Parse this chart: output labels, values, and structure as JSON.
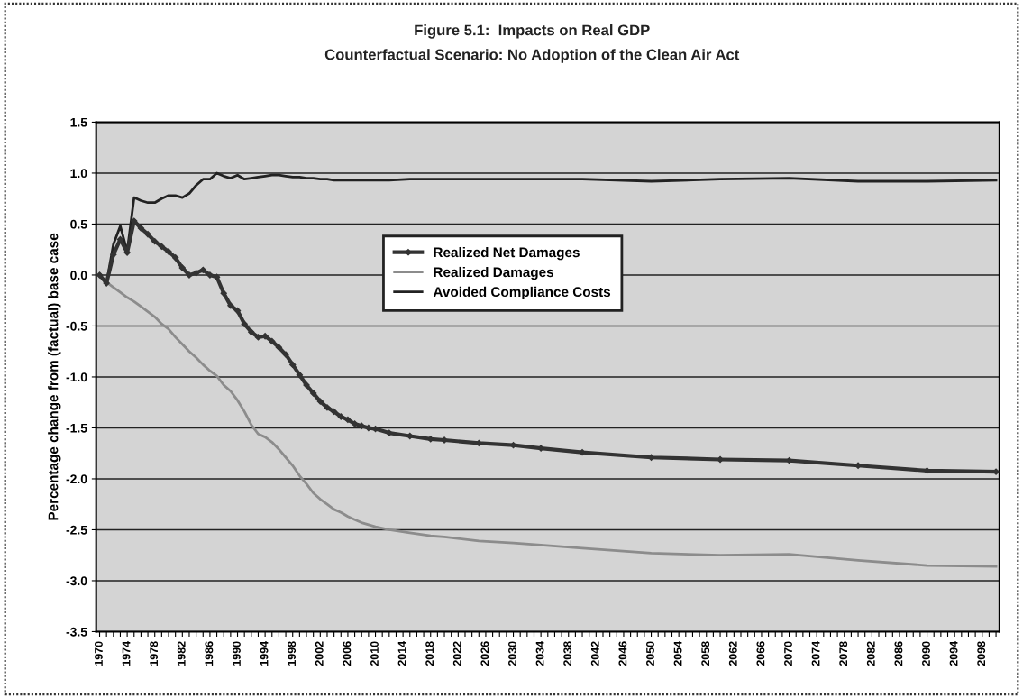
{
  "chart_data": {
    "type": "line",
    "title": "Figure 5.1:  Impacts on Real GDP",
    "subtitle": "Counterfactual Scenario: No Adoption of the Clean Air Act",
    "ylabel": "Percentage change from (factual) base case",
    "x": [
      1970,
      1971,
      1972,
      1973,
      1974,
      1975,
      1976,
      1977,
      1978,
      1979,
      1980,
      1981,
      1982,
      1983,
      1984,
      1985,
      1986,
      1987,
      1988,
      1989,
      1990,
      1991,
      1992,
      1993,
      1994,
      1995,
      1996,
      1997,
      1998,
      1999,
      2000,
      2001,
      2002,
      2003,
      2004,
      2005,
      2006,
      2007,
      2008,
      2009,
      2010,
      2012,
      2015,
      2018,
      2020,
      2025,
      2030,
      2034,
      2040,
      2050,
      2060,
      2070,
      2080,
      2090,
      2100
    ],
    "series": [
      {
        "name": "Realized Net Damages",
        "color": "#333333",
        "marker": "diamond",
        "values": [
          0,
          -0.08,
          0.2,
          0.35,
          0.22,
          0.53,
          0.46,
          0.4,
          0.33,
          0.28,
          0.23,
          0.17,
          0.07,
          0,
          0.02,
          0.05,
          0,
          -0.02,
          -0.18,
          -0.3,
          -0.35,
          -0.48,
          -0.56,
          -0.61,
          -0.6,
          -0.65,
          -0.71,
          -0.78,
          -0.88,
          -0.98,
          -1.08,
          -1.16,
          -1.24,
          -1.3,
          -1.34,
          -1.39,
          -1.42,
          -1.46,
          -1.48,
          -1.5,
          -1.51,
          -1.55,
          -1.58,
          -1.61,
          -1.62,
          -1.65,
          -1.67,
          -1.7,
          -1.74,
          -1.79,
          -1.81,
          -1.82,
          -1.87,
          -1.92,
          -1.93
        ]
      },
      {
        "name": "Realized Damages",
        "color": "#8c8c8c",
        "values": [
          0,
          -0.07,
          -0.12,
          -0.17,
          -0.22,
          -0.26,
          -0.31,
          -0.36,
          -0.41,
          -0.48,
          -0.53,
          -0.61,
          -0.68,
          -0.75,
          -0.81,
          -0.88,
          -0.94,
          -0.99,
          -1.08,
          -1.14,
          -1.23,
          -1.34,
          -1.47,
          -1.56,
          -1.59,
          -1.64,
          -1.71,
          -1.79,
          -1.87,
          -1.97,
          -2.05,
          -2.14,
          -2.2,
          -2.25,
          -2.3,
          -2.33,
          -2.37,
          -2.4,
          -2.43,
          -2.45,
          -2.47,
          -2.5,
          -2.53,
          -2.56,
          -2.57,
          -2.61,
          -2.63,
          -2.65,
          -2.68,
          -2.73,
          -2.75,
          -2.74,
          -2.8,
          -2.85,
          -2.86
        ]
      },
      {
        "name": "Avoided Compliance Costs",
        "color": "#222222",
        "values": [
          0,
          -0.08,
          0.3,
          0.48,
          0.23,
          0.76,
          0.73,
          0.71,
          0.71,
          0.75,
          0.78,
          0.78,
          0.76,
          0.8,
          0.88,
          0.94,
          0.94,
          1.0,
          0.97,
          0.95,
          0.98,
          0.94,
          0.95,
          0.96,
          0.97,
          0.98,
          0.98,
          0.97,
          0.96,
          0.96,
          0.95,
          0.95,
          0.94,
          0.94,
          0.93,
          0.93,
          0.93,
          0.93,
          0.93,
          0.93,
          0.93,
          0.93,
          0.94,
          0.94,
          0.94,
          0.94,
          0.94,
          0.94,
          0.94,
          0.92,
          0.94,
          0.95,
          0.92,
          0.92,
          0.93
        ]
      }
    ],
    "xlim": [
      1969.5,
      2100.5
    ],
    "xticks": [
      1970,
      {
        "value": 1971,
        "label": null
      },
      {
        "value": 1972,
        "label": null
      },
      {
        "value": 1973,
        "label": null
      },
      1974,
      {
        "value": 1975,
        "label": null
      },
      {
        "value": 1976,
        "label": null
      },
      {
        "value": 1977,
        "label": null
      },
      1978,
      {
        "value": 1979,
        "label": null
      },
      {
        "value": 1980,
        "label": null
      },
      {
        "value": 1981,
        "label": null
      },
      1982,
      {
        "value": 1983,
        "label": null
      },
      {
        "value": 1984,
        "label": null
      },
      {
        "value": 1985,
        "label": null
      },
      1986,
      {
        "value": 1987,
        "label": null
      },
      {
        "value": 1988,
        "label": null
      },
      {
        "value": 1989,
        "label": null
      },
      1990,
      {
        "value": 1991,
        "label": null
      },
      {
        "value": 1992,
        "label": null
      },
      {
        "value": 1993,
        "label": null
      },
      1994,
      {
        "value": 1995,
        "label": null
      },
      {
        "value": 1996,
        "label": null
      },
      {
        "value": 1997,
        "label": null
      },
      1998,
      {
        "value": 1999,
        "label": null
      },
      {
        "value": 2000,
        "label": null
      },
      {
        "value": 2001,
        "label": null
      },
      2002,
      {
        "value": 2003,
        "label": null
      },
      {
        "value": 2004,
        "label": null
      },
      {
        "value": 2005,
        "label": null
      },
      2006,
      {
        "value": 2007,
        "label": null
      },
      {
        "value": 2008,
        "label": null
      },
      {
        "value": 2009,
        "label": null
      },
      2010,
      {
        "value": 2011,
        "label": null
      },
      {
        "value": 2012,
        "label": null
      },
      {
        "value": 2013,
        "label": null
      },
      2014,
      {
        "value": 2015,
        "label": null
      },
      {
        "value": 2016,
        "label": null
      },
      {
        "value": 2017,
        "label": null
      },
      2018,
      {
        "value": 2019,
        "label": null
      },
      {
        "value": 2020,
        "label": null
      },
      {
        "value": 2021,
        "label": null
      },
      2022,
      {
        "value": 2023,
        "label": null
      },
      {
        "value": 2024,
        "label": null
      },
      {
        "value": 2025,
        "label": null
      },
      2026,
      {
        "value": 2027,
        "label": null
      },
      {
        "value": 2028,
        "label": null
      },
      {
        "value": 2029,
        "label": null
      },
      2030,
      {
        "value": 2031,
        "label": null
      },
      {
        "value": 2032,
        "label": null
      },
      {
        "value": 2033,
        "label": null
      },
      2034,
      {
        "value": 2035,
        "label": null
      },
      {
        "value": 2036,
        "label": null
      },
      {
        "value": 2037,
        "label": null
      },
      2038,
      {
        "value": 2039,
        "label": null
      },
      {
        "value": 2040,
        "label": null
      },
      {
        "value": 2041,
        "label": null
      },
      2042,
      {
        "value": 2043,
        "label": null
      },
      {
        "value": 2044,
        "label": null
      },
      {
        "value": 2045,
        "label": null
      },
      2046,
      {
        "value": 2047,
        "label": null
      },
      {
        "value": 2048,
        "label": null
      },
      {
        "value": 2049,
        "label": null
      },
      2050,
      {
        "value": 2051,
        "label": null
      },
      {
        "value": 2052,
        "label": null
      },
      {
        "value": 2053,
        "label": null
      },
      2054,
      {
        "value": 2055,
        "label": null
      },
      {
        "value": 2056,
        "label": null
      },
      {
        "value": 2057,
        "label": null
      },
      2058,
      {
        "value": 2059,
        "label": null
      },
      {
        "value": 2060,
        "label": null
      },
      {
        "value": 2061,
        "label": null
      },
      2062,
      {
        "value": 2063,
        "label": null
      },
      {
        "value": 2064,
        "label": null
      },
      {
        "value": 2065,
        "label": null
      },
      2066,
      {
        "value": 2067,
        "label": null
      },
      {
        "value": 2068,
        "label": null
      },
      {
        "value": 2069,
        "label": null
      },
      2070,
      {
        "value": 2071,
        "label": null
      },
      {
        "value": 2072,
        "label": null
      },
      {
        "value": 2073,
        "label": null
      },
      2074,
      {
        "value": 2075,
        "label": null
      },
      {
        "value": 2076,
        "label": null
      },
      {
        "value": 2077,
        "label": null
      },
      2078,
      {
        "value": 2079,
        "label": null
      },
      {
        "value": 2080,
        "label": null
      },
      {
        "value": 2081,
        "label": null
      },
      2082,
      {
        "value": 2083,
        "label": null
      },
      {
        "value": 2084,
        "label": null
      },
      {
        "value": 2085,
        "label": null
      },
      2086,
      {
        "value": 2087,
        "label": null
      },
      {
        "value": 2088,
        "label": null
      },
      {
        "value": 2089,
        "label": null
      },
      2090,
      {
        "value": 2091,
        "label": null
      },
      {
        "value": 2092,
        "label": null
      },
      {
        "value": 2093,
        "label": null
      },
      2094,
      {
        "value": 2095,
        "label": null
      },
      {
        "value": 2096,
        "label": null
      },
      {
        "value": 2097,
        "label": null
      },
      2098,
      {
        "value": 2099,
        "label": null
      },
      {
        "value": 2100,
        "label": null
      }
    ],
    "ylim": [
      -3.5,
      1.5
    ],
    "yticks": [
      {
        "value": 1.5,
        "label": "1.5"
      },
      {
        "value": 1.0,
        "label": "1.0"
      },
      {
        "value": 0.5,
        "label": "0.5"
      },
      {
        "value": 0.0,
        "label": "0.0"
      },
      {
        "value": -0.5,
        "label": "-0.5"
      },
      {
        "value": -1.0,
        "label": "-1.0"
      },
      {
        "value": -1.5,
        "label": "-1.5"
      },
      {
        "value": -2.0,
        "label": "-2.0"
      },
      {
        "value": -2.5,
        "label": "-2.5"
      },
      {
        "value": -3.0,
        "label": "-3.0"
      },
      {
        "value": -3.5,
        "label": "-3.5"
      }
    ],
    "grid": "y",
    "legend": "top",
    "line_style": "solid"
  }
}
